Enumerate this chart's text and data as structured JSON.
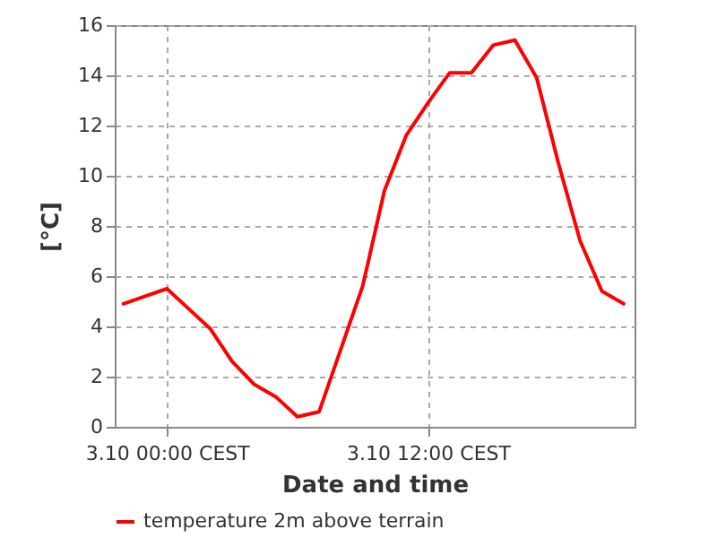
{
  "chart_data": {
    "type": "line",
    "xlabel": "Date and time",
    "ylabel": "[°C]",
    "categories": [
      null,
      null,
      "3.10 00:00 CEST",
      null,
      null,
      null,
      null,
      null,
      null,
      null,
      null,
      null,
      null,
      null,
      "3.10 12:00 CEST",
      null,
      null,
      null,
      null,
      null,
      null,
      null,
      null,
      null
    ],
    "series": [
      {
        "name": "temperature 2m above terrain",
        "color": "#ff0000",
        "values": [
          4.9,
          5.2,
          5.5,
          4.7,
          3.9,
          2.6,
          1.7,
          1.2,
          0.4,
          0.6,
          3.1,
          5.6,
          9.4,
          11.6,
          12.9,
          14.1,
          14.1,
          15.2,
          15.4,
          13.9,
          10.5,
          7.4,
          5.4,
          4.9
        ]
      }
    ],
    "ylim": [
      0,
      16
    ],
    "yticks": [
      0,
      2,
      4,
      6,
      8,
      10,
      12,
      14,
      16
    ],
    "grid": true,
    "legend": "bottom",
    "marker": "none",
    "line_style": "solid"
  }
}
